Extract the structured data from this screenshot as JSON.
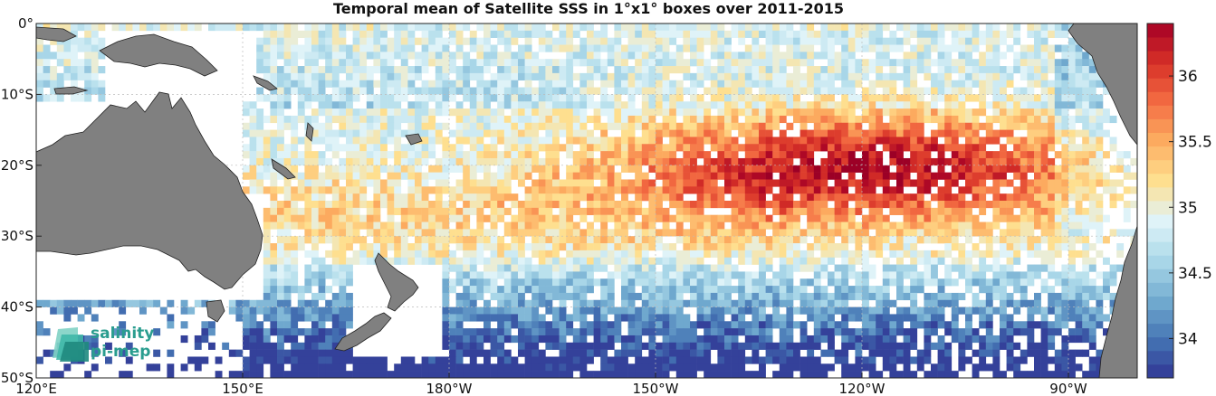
{
  "title": "Temporal mean of Satellite SSS in 1°x1° boxes over 2011-2015",
  "map": {
    "lon_range": [
      120,
      280
    ],
    "lat_range": [
      -50,
      0
    ],
    "lon_ticks": [
      {
        "lon": 120,
        "label": "120°E"
      },
      {
        "lon": 150,
        "label": "150°E"
      },
      {
        "lon": 180,
        "label": "180°W"
      },
      {
        "lon": 210,
        "label": "150°W"
      },
      {
        "lon": 240,
        "label": "120°W"
      },
      {
        "lon": 270,
        "label": "90°W"
      }
    ],
    "lat_ticks": [
      {
        "lat": 0,
        "label": "0°"
      },
      {
        "lat": -10,
        "label": "10°S"
      },
      {
        "lat": -20,
        "label": "20°S"
      },
      {
        "lat": -30,
        "label": "30°S"
      },
      {
        "lat": -40,
        "label": "40°S"
      },
      {
        "lat": -50,
        "label": "50°S"
      }
    ],
    "land_color": "#808080",
    "ocean_missing_color": "#ffffff"
  },
  "colorbar": {
    "min": 33.7,
    "max": 36.4,
    "ticks": [
      {
        "value": 34,
        "label": "34"
      },
      {
        "value": 34.5,
        "label": "34.5"
      },
      {
        "value": 35,
        "label": "35"
      },
      {
        "value": 35.5,
        "label": "35.5"
      },
      {
        "value": 36,
        "label": "36"
      }
    ],
    "colormap": [
      "#313695",
      "#4575b4",
      "#74add1",
      "#abd9e9",
      "#e0f3f8",
      "#fee090",
      "#fdae61",
      "#f46d43",
      "#d73027",
      "#a50026"
    ]
  },
  "logo": {
    "line1": "salinity",
    "line2": "pi-mep"
  },
  "icons": {
    "logo": "salinity-pimep-logo-icon"
  }
}
